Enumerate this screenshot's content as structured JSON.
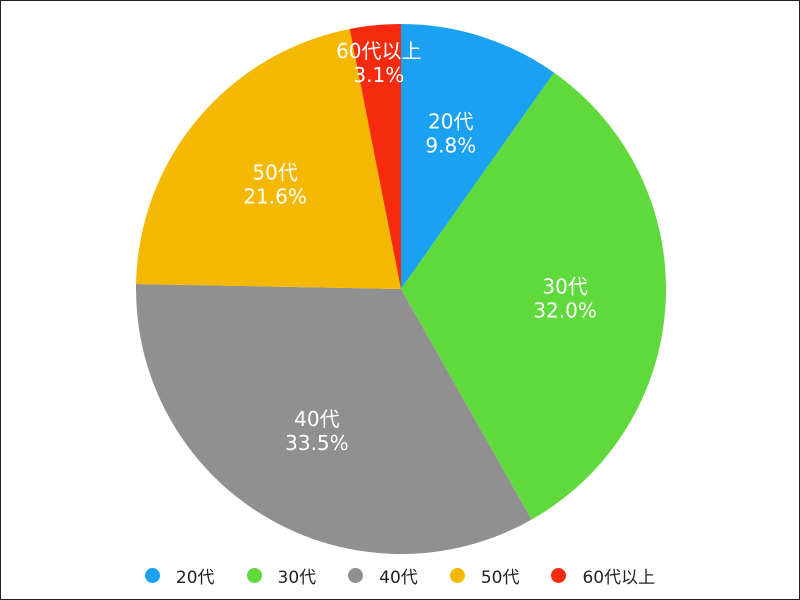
{
  "chart_data": {
    "type": "pie",
    "categories": [
      "20代",
      "30代",
      "40代",
      "50代",
      "60代以上"
    ],
    "values": [
      9.8,
      32.0,
      33.5,
      21.6,
      3.1
    ],
    "value_labels": [
      "9.8%",
      "32.0%",
      "33.5%",
      "21.6%",
      "3.1%"
    ],
    "colors": [
      "#1aa1f2",
      "#5fd93c",
      "#909090",
      "#f5b800",
      "#f52a0f"
    ],
    "start_angle": "12 o'clock",
    "direction": "clockwise",
    "title": "",
    "legend": {
      "position": "bottom",
      "marker": "circle"
    }
  }
}
